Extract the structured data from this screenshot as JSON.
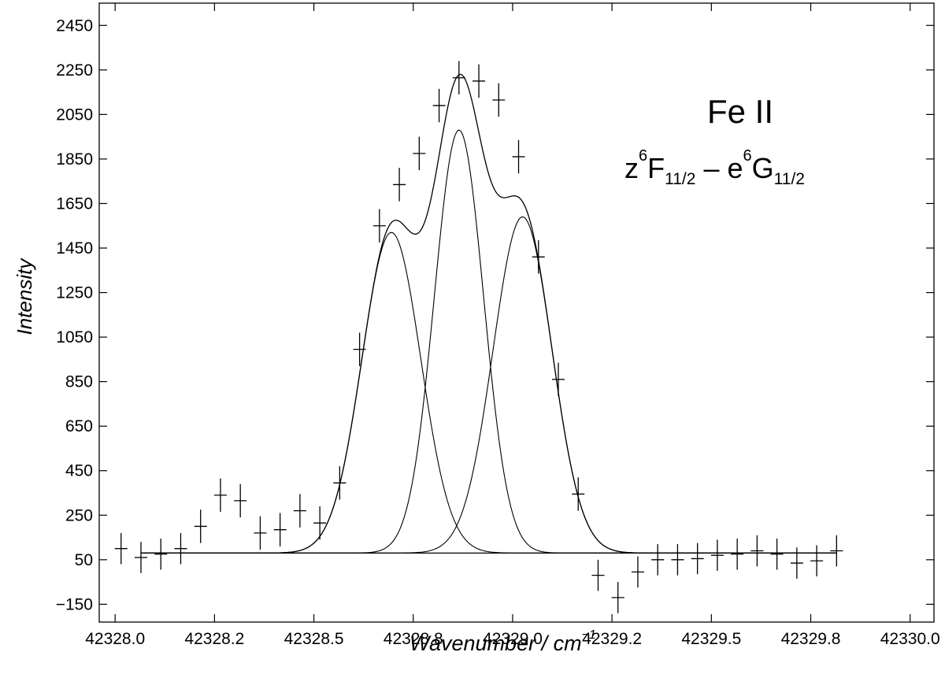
{
  "chart_data": {
    "type": "scatter",
    "title": "Fe II",
    "subtitle": {
      "parts": [
        "z",
        "6",
        "F",
        "11/2",
        " – e",
        "6",
        "G",
        "11/2"
      ]
    },
    "xlabel": "Wavenumber / cm",
    "xlabel_sup": "−1",
    "ylabel": "Intensity",
    "xlim": [
      42328.0,
      42330.0
    ],
    "ylim": [
      -230,
      2550
    ],
    "x_ticks": [
      {
        "value": 42328.0,
        "label": "42328.0"
      },
      {
        "value": 42328.25,
        "label": "42328.2"
      },
      {
        "value": 42328.5,
        "label": "42328.5"
      },
      {
        "value": 42328.75,
        "label": "42328.8"
      },
      {
        "value": 42329.0,
        "label": "42329.0"
      },
      {
        "value": 42329.25,
        "label": "42329.2"
      },
      {
        "value": 42329.5,
        "label": "42329.5"
      },
      {
        "value": 42329.75,
        "label": "42329.8"
      },
      {
        "value": 42330.0,
        "label": "42330.0"
      }
    ],
    "y_ticks": [
      {
        "value": 2450,
        "label": "2450"
      },
      {
        "value": 2250,
        "label": "2250"
      },
      {
        "value": 2050,
        "label": "2050"
      },
      {
        "value": 1850,
        "label": "1850"
      },
      {
        "value": 1650,
        "label": "1650"
      },
      {
        "value": 1450,
        "label": "1450"
      },
      {
        "value": 1250,
        "label": "1250"
      },
      {
        "value": 1050,
        "label": "1050"
      },
      {
        "value": 850,
        "label": "850"
      },
      {
        "value": 650,
        "label": "650"
      },
      {
        "value": 450,
        "label": "450"
      },
      {
        "value": 250,
        "label": "250"
      },
      {
        "value": 50,
        "label": "50"
      },
      {
        "value": -150,
        "label": "−150"
      }
    ],
    "grid": false,
    "points": [
      {
        "x": 42328.015,
        "y": 100,
        "err": 70
      },
      {
        "x": 42328.065,
        "y": 60,
        "err": 70
      },
      {
        "x": 42328.115,
        "y": 75,
        "err": 70
      },
      {
        "x": 42328.165,
        "y": 100,
        "err": 70
      },
      {
        "x": 42328.215,
        "y": 200,
        "err": 75
      },
      {
        "x": 42328.265,
        "y": 340,
        "err": 75
      },
      {
        "x": 42328.315,
        "y": 315,
        "err": 75
      },
      {
        "x": 42328.365,
        "y": 170,
        "err": 75
      },
      {
        "x": 42328.415,
        "y": 185,
        "err": 75
      },
      {
        "x": 42328.465,
        "y": 270,
        "err": 75
      },
      {
        "x": 42328.515,
        "y": 215,
        "err": 75
      },
      {
        "x": 42328.565,
        "y": 395,
        "err": 75
      },
      {
        "x": 42328.615,
        "y": 995,
        "err": 75
      },
      {
        "x": 42328.665,
        "y": 1550,
        "err": 75
      },
      {
        "x": 42328.715,
        "y": 1735,
        "err": 75
      },
      {
        "x": 42328.765,
        "y": 1875,
        "err": 75
      },
      {
        "x": 42328.815,
        "y": 2090,
        "err": 75
      },
      {
        "x": 42328.865,
        "y": 2215,
        "err": 75
      },
      {
        "x": 42328.915,
        "y": 2200,
        "err": 75
      },
      {
        "x": 42328.965,
        "y": 2115,
        "err": 75
      },
      {
        "x": 42329.015,
        "y": 1860,
        "err": 75
      },
      {
        "x": 42329.065,
        "y": 1410,
        "err": 75
      },
      {
        "x": 42329.115,
        "y": 860,
        "err": 75
      },
      {
        "x": 42329.165,
        "y": 345,
        "err": 75
      },
      {
        "x": 42329.215,
        "y": -20,
        "err": 70
      },
      {
        "x": 42329.265,
        "y": -120,
        "err": 70
      },
      {
        "x": 42329.315,
        "y": -5,
        "err": 70
      },
      {
        "x": 42329.365,
        "y": 50,
        "err": 70
      },
      {
        "x": 42329.415,
        "y": 50,
        "err": 70
      },
      {
        "x": 42329.465,
        "y": 55,
        "err": 70
      },
      {
        "x": 42329.515,
        "y": 70,
        "err": 70
      },
      {
        "x": 42329.565,
        "y": 75,
        "err": 70
      },
      {
        "x": 42329.615,
        "y": 90,
        "err": 70
      },
      {
        "x": 42329.665,
        "y": 75,
        "err": 70
      },
      {
        "x": 42329.715,
        "y": 35,
        "err": 70
      },
      {
        "x": 42329.765,
        "y": 45,
        "err": 70
      },
      {
        "x": 42329.815,
        "y": 90,
        "err": 70
      }
    ],
    "fit": {
      "baseline": 80,
      "x_start": 42328.065,
      "x_end": 42329.815,
      "components": [
        {
          "center": 42328.695,
          "amplitude": 1440,
          "sigma": 0.074
        },
        {
          "center": 42328.865,
          "amplitude": 1900,
          "sigma": 0.062
        },
        {
          "center": 42329.025,
          "amplitude": 1510,
          "sigma": 0.074
        }
      ]
    }
  }
}
